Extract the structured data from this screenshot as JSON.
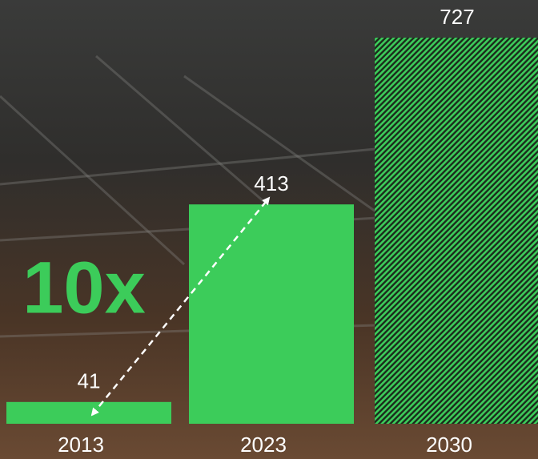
{
  "chart_data": {
    "type": "bar",
    "categories": [
      "2013",
      "2023",
      "2030"
    ],
    "values": [
      41,
      413,
      727
    ],
    "color": "#3ccc5a",
    "patterns": [
      "solid",
      "solid",
      "hatch"
    ],
    "annotation": "10x"
  }
}
